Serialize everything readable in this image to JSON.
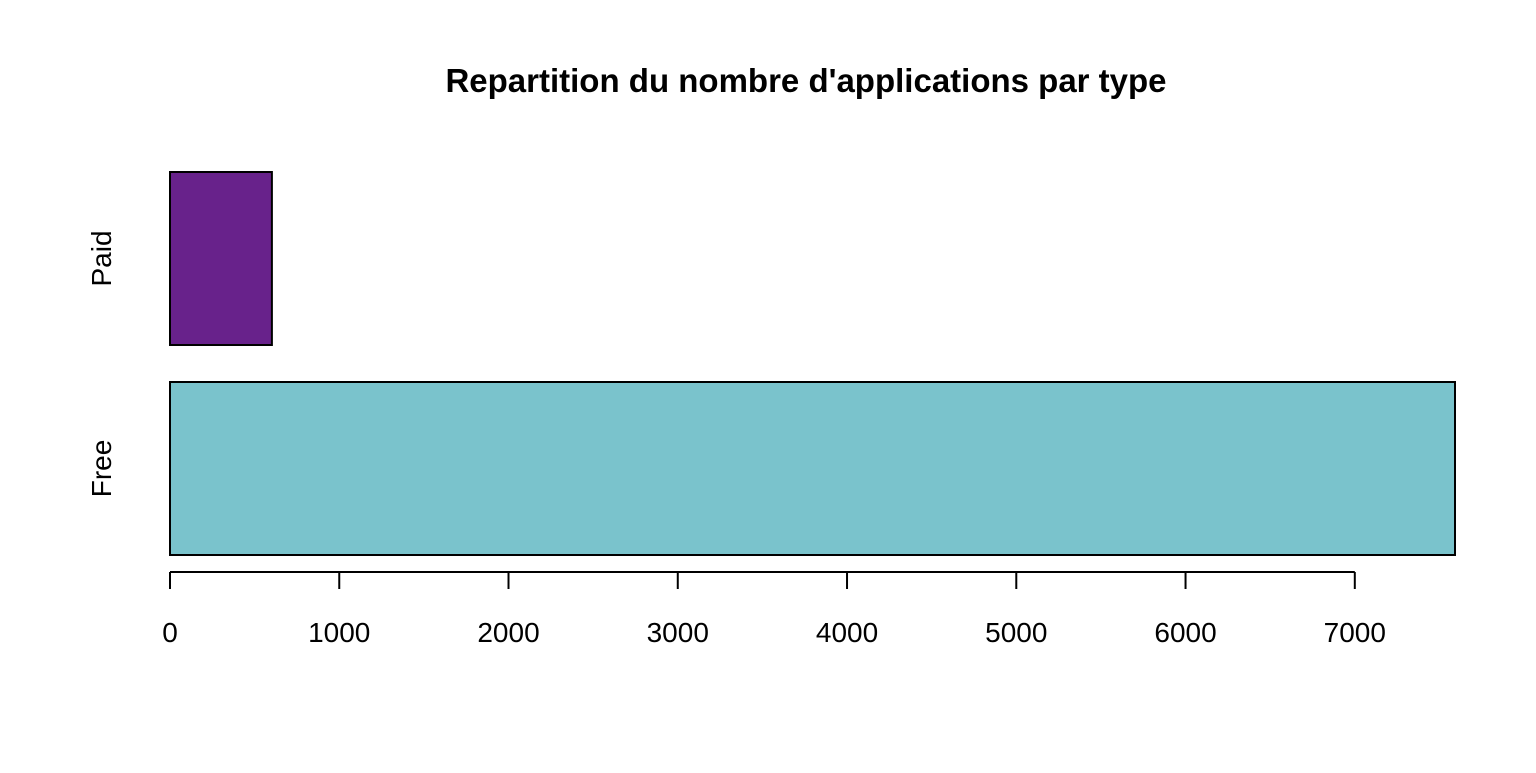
{
  "chart_data": {
    "type": "bar",
    "orientation": "horizontal",
    "title": "Repartition du nombre d'applications par type",
    "categories": [
      "Free",
      "Paid"
    ],
    "values": [
      7592,
      602
    ],
    "colors": [
      "#7AC3CC",
      "#68228B"
    ],
    "xlim": [
      0,
      7592
    ],
    "xticks": [
      0,
      1000,
      2000,
      3000,
      4000,
      5000,
      6000,
      7000
    ],
    "xlabel": "",
    "ylabel": "",
    "grid": false,
    "legend": "none"
  }
}
